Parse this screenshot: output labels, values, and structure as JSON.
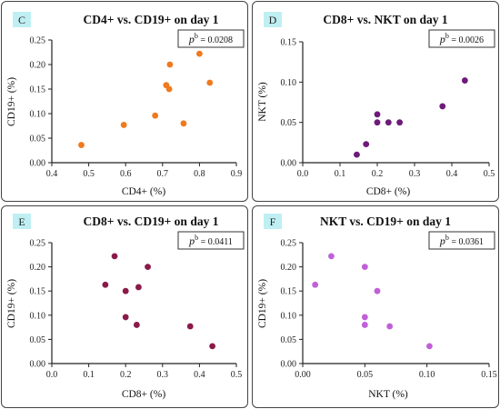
{
  "chart_data": [
    {
      "type": "scatter",
      "letter": "C",
      "title": "CD4+ vs. CD19+ on day 1",
      "xlabel": "CD4+ (%)",
      "ylabel": "CD19+ (%)",
      "xlim": [
        0.4,
        0.9
      ],
      "ylim": [
        0,
        0.25
      ],
      "xticks": [
        "0.4",
        "0.5",
        "0.6",
        "0.7",
        "0.8",
        "0.9"
      ],
      "yticks": [
        "0.00",
        "0.05",
        "0.10",
        "0.15",
        "0.20",
        "0.25"
      ],
      "annotation_value": " = 0.0208",
      "color": "#f07a1e",
      "points": [
        {
          "x": 0.48,
          "y": 0.036
        },
        {
          "x": 0.595,
          "y": 0.077
        },
        {
          "x": 0.68,
          "y": 0.096
        },
        {
          "x": 0.71,
          "y": 0.158
        },
        {
          "x": 0.718,
          "y": 0.15
        },
        {
          "x": 0.72,
          "y": 0.2
        },
        {
          "x": 0.757,
          "y": 0.08
        },
        {
          "x": 0.8,
          "y": 0.222
        },
        {
          "x": 0.828,
          "y": 0.163
        }
      ]
    },
    {
      "type": "scatter",
      "letter": "D",
      "title": "CD8+ vs. NKT on day 1",
      "xlabel": "CD8+ (%)",
      "ylabel": "NKT (%)",
      "xlim": [
        0,
        0.5
      ],
      "ylim": [
        0,
        0.15
      ],
      "xticks": [
        "0.0",
        "0.1",
        "0.2",
        "0.3",
        "0.4",
        "0.5"
      ],
      "yticks": [
        "0.00",
        "0.05",
        "0.10",
        "0.15"
      ],
      "annotation_value": " = 0.0026",
      "color": "#6e1a7a",
      "points": [
        {
          "x": 0.145,
          "y": 0.01
        },
        {
          "x": 0.17,
          "y": 0.023
        },
        {
          "x": 0.2,
          "y": 0.06
        },
        {
          "x": 0.2,
          "y": 0.05
        },
        {
          "x": 0.23,
          "y": 0.05
        },
        {
          "x": 0.26,
          "y": 0.05
        },
        {
          "x": 0.375,
          "y": 0.07
        },
        {
          "x": 0.435,
          "y": 0.102
        }
      ]
    },
    {
      "type": "scatter",
      "letter": "E",
      "title": "CD8+ vs. CD19+ on day 1",
      "xlabel": "CD8+ (%)",
      "ylabel": "CD19+ (%)",
      "xlim": [
        0,
        0.5
      ],
      "ylim": [
        0,
        0.25
      ],
      "xticks": [
        "0.0",
        "0.1",
        "0.2",
        "0.3",
        "0.4",
        "0.5"
      ],
      "yticks": [
        "0.00",
        "0.05",
        "0.10",
        "0.15",
        "0.20",
        "0.25"
      ],
      "annotation_value": " = 0.0411",
      "color": "#8a1a4a",
      "points": [
        {
          "x": 0.145,
          "y": 0.163
        },
        {
          "x": 0.17,
          "y": 0.222
        },
        {
          "x": 0.2,
          "y": 0.15
        },
        {
          "x": 0.2,
          "y": 0.096
        },
        {
          "x": 0.23,
          "y": 0.08
        },
        {
          "x": 0.235,
          "y": 0.158
        },
        {
          "x": 0.26,
          "y": 0.2
        },
        {
          "x": 0.375,
          "y": 0.077
        },
        {
          "x": 0.435,
          "y": 0.036
        }
      ]
    },
    {
      "type": "scatter",
      "letter": "F",
      "title": "NKT vs. CD19+ on day 1",
      "xlabel": "NKT (%)",
      "ylabel": "CD19+ (%)",
      "xlim": [
        0,
        0.15
      ],
      "ylim": [
        0,
        0.25
      ],
      "xticks": [
        "0.00",
        "0.05",
        "0.10",
        "0.15"
      ],
      "yticks": [
        "0.00",
        "0.05",
        "0.10",
        "0.15",
        "0.20",
        "0.25"
      ],
      "annotation_value": " = 0.0361",
      "color": "#c060d8",
      "points": [
        {
          "x": 0.01,
          "y": 0.163
        },
        {
          "x": 0.023,
          "y": 0.222
        },
        {
          "x": 0.05,
          "y": 0.2
        },
        {
          "x": 0.05,
          "y": 0.096
        },
        {
          "x": 0.05,
          "y": 0.08
        },
        {
          "x": 0.06,
          "y": 0.15
        },
        {
          "x": 0.07,
          "y": 0.077
        },
        {
          "x": 0.102,
          "y": 0.036
        }
      ]
    }
  ],
  "annotation_symbol": "p",
  "annotation_superscript": "b",
  "letter_box_color": "#bfeff2"
}
